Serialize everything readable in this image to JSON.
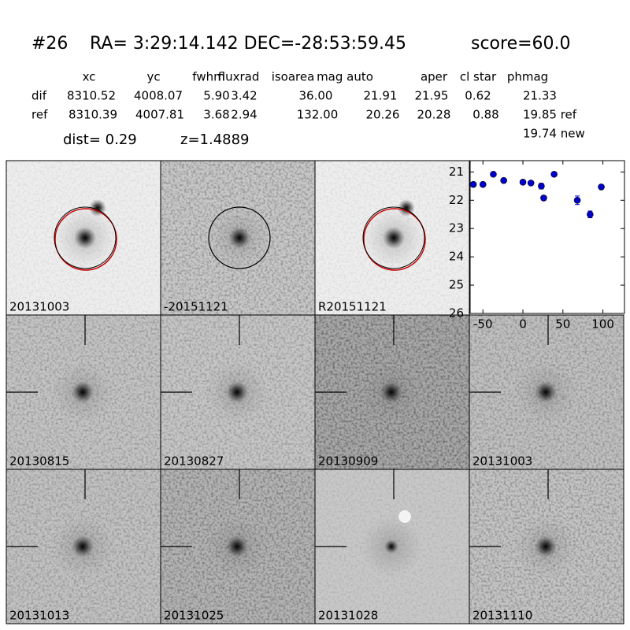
{
  "header": {
    "id": "#26",
    "coords": "RA= 3:29:14.142 DEC=-28:53:59.45",
    "score": "score=60.0"
  },
  "table": {
    "columns": [
      "xc",
      "yc",
      "fwhm",
      "fluxrad",
      "isoarea",
      "mag auto",
      "aper",
      "cl star",
      "phmag"
    ],
    "rows": [
      [
        "dif",
        "8310.52",
        "4008.07",
        "5.90",
        "3.42",
        "36.00",
        "21.91",
        "21.95",
        "0.62",
        "21.33"
      ],
      [
        "ref",
        "8310.39",
        "4007.81",
        "3.68",
        "2.94",
        "132.00",
        "20.26",
        "20.28",
        "0.88",
        "19.85 ref"
      ]
    ],
    "extra": "19.74 new",
    "dist": "dist=  0.29",
    "z": "z=1.4889"
  },
  "stamps": [
    {
      "label": "20131003",
      "color": "#000000"
    },
    {
      "label": "-20151121",
      "color": "#000000"
    },
    {
      "label": "R20151121",
      "color": "#000000"
    },
    {
      "label": "20130815",
      "color": "#000000"
    },
    {
      "label": "20130827",
      "color": "#000000"
    },
    {
      "label": "20130909",
      "color": "#000000"
    },
    {
      "label": "20131003",
      "color": "#ff0000"
    },
    {
      "label": "20131013",
      "color": "#000000"
    },
    {
      "label": "20131025",
      "color": "#000000"
    },
    {
      "label": "20131028",
      "color": "#000000"
    },
    {
      "label": "20131110",
      "color": "#000000"
    }
  ],
  "chart_data": {
    "type": "scatter",
    "x": [
      -62,
      -50,
      -37,
      -24,
      0,
      10,
      23,
      26,
      39,
      68,
      84,
      98
    ],
    "series": [
      {
        "color": "#0000cc",
        "values": [
          21.44,
          21.44,
          21.08,
          21.3,
          21.36,
          21.39,
          21.5,
          21.92,
          21.08,
          22.0,
          22.5,
          21.53
        ],
        "errors": [
          0.05,
          0.05,
          0.04,
          0.05,
          0.04,
          0.05,
          0.1,
          0.08,
          0.04,
          0.15,
          0.12,
          0.07
        ]
      }
    ],
    "xlim": [
      -66,
      127
    ],
    "ylim": [
      20.6,
      26
    ],
    "y_inverted": true,
    "xticks": [
      -50,
      0,
      50,
      100
    ],
    "yticks": [
      21,
      22,
      23,
      24,
      25,
      26
    ]
  }
}
